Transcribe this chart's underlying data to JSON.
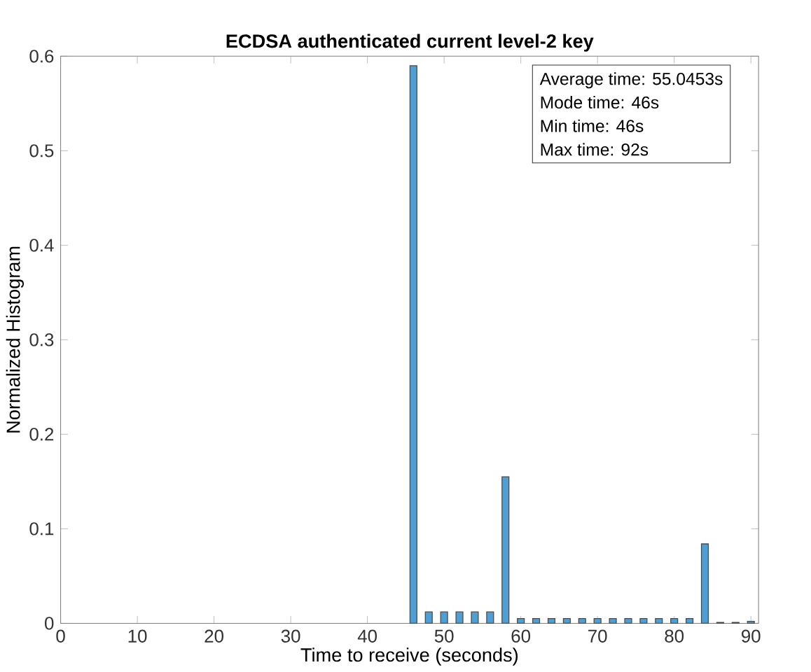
{
  "chart_data": {
    "type": "bar",
    "title": "ECDSA authenticated current level-2 key",
    "xlabel": "Time to receive (seconds)",
    "ylabel": "Normalized Histogram",
    "annotations": [
      "Average time: 55.0453s",
      "Mode time: 46s",
      "Min time: 46s",
      "Max time: 92s"
    ],
    "x": [
      46,
      48,
      50,
      52,
      54,
      56,
      58,
      60,
      62,
      64,
      66,
      68,
      70,
      72,
      74,
      76,
      78,
      80,
      82,
      84,
      86,
      88,
      90
    ],
    "values": [
      0.59,
      0.012,
      0.012,
      0.012,
      0.012,
      0.012,
      0.155,
      0.005,
      0.005,
      0.005,
      0.005,
      0.005,
      0.005,
      0.005,
      0.005,
      0.005,
      0.005,
      0.005,
      0.005,
      0.084,
      0.001,
      0.001,
      0.002
    ],
    "color": "#4d9fd6",
    "xlim": [
      0,
      91
    ],
    "ylim": [
      0,
      0.6
    ],
    "xticks": [
      0,
      10,
      20,
      30,
      40,
      50,
      60,
      70,
      80,
      90
    ],
    "yticks": [
      0,
      0.1,
      0.2,
      0.3,
      0.4,
      0.5,
      0.6
    ],
    "grid": false
  }
}
